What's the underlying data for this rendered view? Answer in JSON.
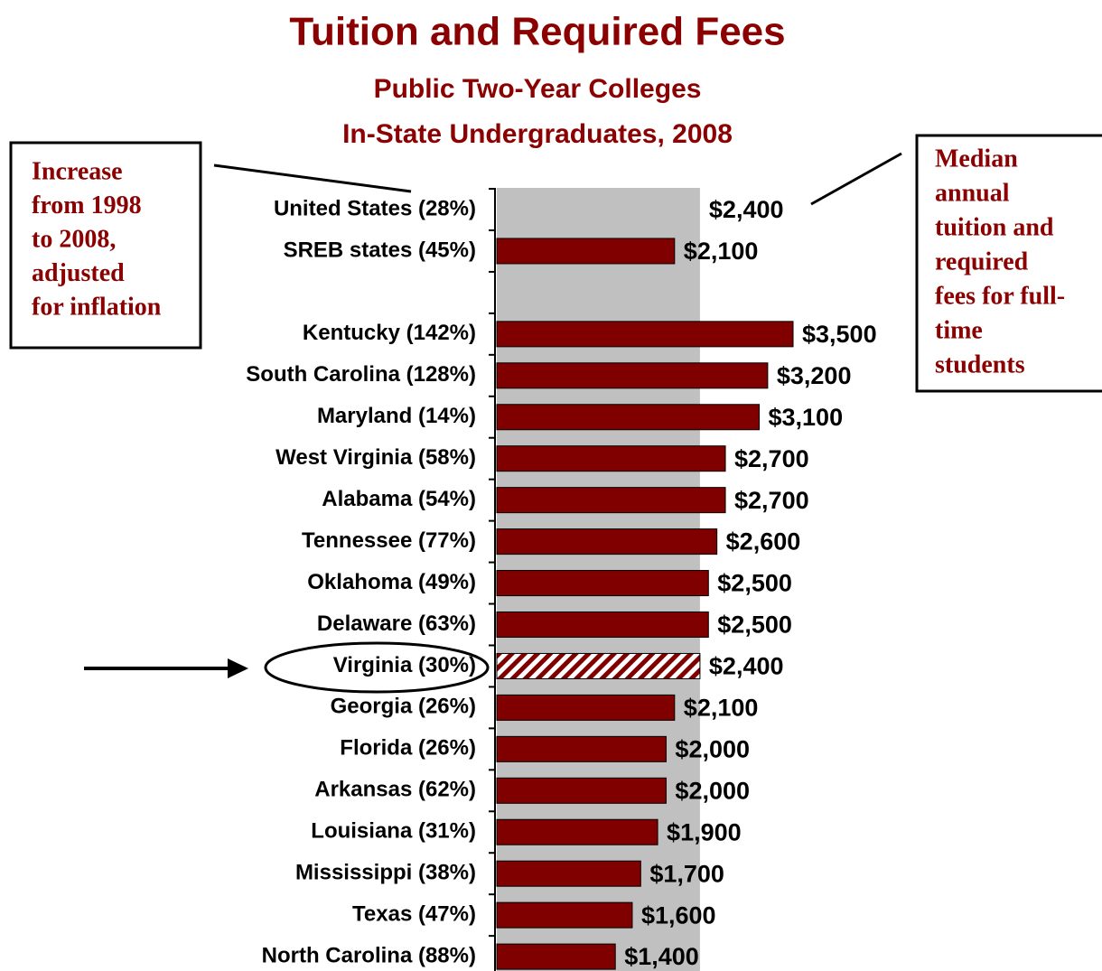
{
  "chart_data": {
    "type": "bar",
    "orientation": "horizontal",
    "title": "Tuition and Required Fees",
    "subtitle": [
      "Public Two-Year Colleges",
      "In-State Undergraduates, 2008"
    ],
    "categories": [
      "United States (28%)",
      "SREB states (45%)",
      null,
      "Kentucky (142%)",
      "South Carolina (128%)",
      "Maryland (14%)",
      "West Virginia (58%)",
      "Alabama (54%)",
      "Tennessee (77%)",
      "Oklahoma (49%)",
      "Delaware (63%)",
      "Virginia (30%)",
      "Georgia (26%)",
      "Florida (26%)",
      "Arkansas (62%)",
      "Louisiana (31%)",
      "Mississippi (38%)",
      "Texas (47%)",
      "North Carolina (88%)"
    ],
    "values": [
      2400,
      2100,
      null,
      3500,
      3200,
      3100,
      2700,
      2700,
      2600,
      2500,
      2500,
      2400,
      2100,
      2000,
      2000,
      1900,
      1700,
      1600,
      1400
    ],
    "value_labels": [
      "$2,400",
      "$2,100",
      null,
      "$3,500",
      "$3,200",
      "$3,100",
      "$2,700",
      "$2,700",
      "$2,600",
      "$2,500",
      "$2,500",
      "$2,400",
      "$2,100",
      "$2,000",
      "$2,000",
      "$1,900",
      "$1,700",
      "$1,600",
      "$1,400"
    ],
    "color": "#800000",
    "band_color": "#c0c0c0",
    "title_color": "#8b0000",
    "left_note": [
      "Increase",
      "from 1998",
      "to 2008,",
      "adjusted",
      "for inflation"
    ],
    "right_note": [
      "Median",
      "annual",
      "tuition and",
      "required",
      "fees for full-",
      "time",
      "students"
    ]
  }
}
